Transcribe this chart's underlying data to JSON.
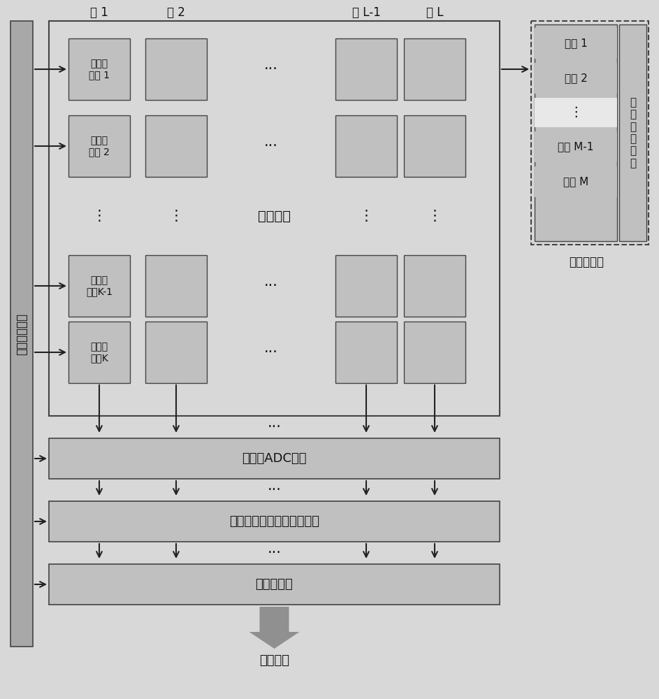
{
  "bg_color": "#d8d8d8",
  "box_fill": "#c0c0c0",
  "box_edge": "#444444",
  "white_fill": "#ffffff",
  "dashed_border": "#444444",
  "arrow_color": "#222222",
  "big_arrow_color": "#909090",
  "text_color": "#111111",
  "left_bar_color": "#a8a8a8",
  "chip_ctrl_text": "芯片控制时序",
  "pixel_array_label": "像素阵列",
  "col_labels": [
    "列 1",
    "列 2",
    "列 L-1",
    "列 L"
  ],
  "subarray_labels": [
    "子像素\n阵列 1",
    "子像素\n阵列 2",
    "子像素\n阵列K-1",
    "子像素\n阵列K"
  ],
  "adc_label": "列并行ADC阵列",
  "digital_label": "列并行数字存储及累加阵列",
  "shift_label": "移位寄存器",
  "output_label": "芯片输出",
  "pixel_labels": [
    "像素 1",
    "像素 2",
    "像素 M-1",
    "像素 M"
  ],
  "readout_label": "像\n素\n读\n出\n电\n路",
  "subarray_detail_label": "子像素阵列"
}
